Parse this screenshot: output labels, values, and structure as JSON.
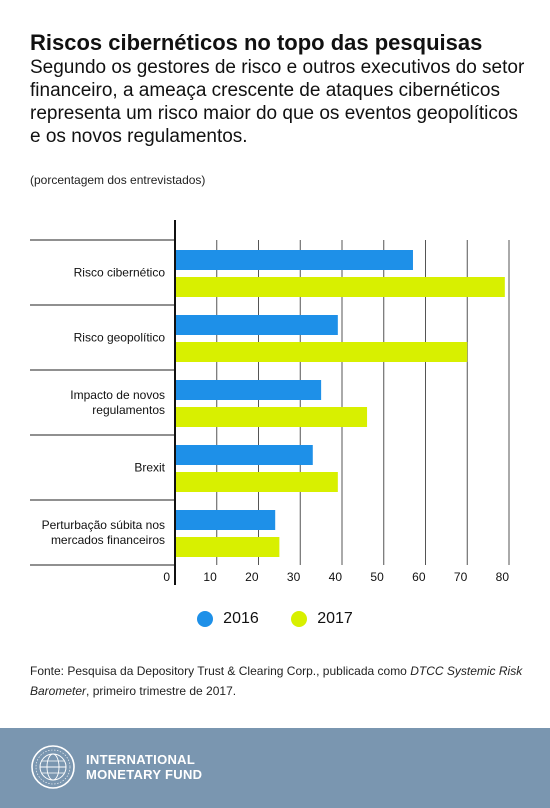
{
  "header": {
    "title": "Riscos cibernéticos no topo das pesquisas",
    "subtitle": "Segundo os gestores de risco e outros executivos do setor financeiro, a ameaça crescente de ataques cibernéticos representa um risco maior do que os eventos geopolíticos e os novos regulamentos.",
    "unit_note": "(porcentagem dos entrevistados)"
  },
  "chart_data": {
    "type": "bar",
    "orientation": "horizontal",
    "categories": [
      "Risco cibernético",
      "Risco geopolítico",
      "Impacto de novos regulamentos",
      "Brexit",
      "Perturbação súbita nos mercados financeiros"
    ],
    "category_lines": [
      [
        "Risco cibernético"
      ],
      [
        "Risco geopolítico"
      ],
      [
        "Impacto de novos",
        "regulamentos"
      ],
      [
        "Brexit"
      ],
      [
        "Perturbação súbita nos",
        "mercados financeiros"
      ]
    ],
    "series": [
      {
        "name": "2016",
        "color": "#1e90e8",
        "values": [
          57,
          39,
          35,
          33,
          24
        ]
      },
      {
        "name": "2017",
        "color": "#d8f000",
        "values": [
          79,
          70,
          46,
          39,
          25
        ]
      }
    ],
    "xlim": [
      0,
      80
    ],
    "xticks": [
      0,
      10,
      20,
      30,
      40,
      50,
      60,
      70,
      80
    ],
    "grid": true,
    "legend_position": "bottom"
  },
  "source": {
    "prefix": "Fonte: Pesquisa da Depository Trust & Clearing Corp., publicada como ",
    "italic": "DTCC Systemic Risk Barometer",
    "suffix": ", primeiro trimestre de 2017."
  },
  "footer": {
    "org_line1": "INTERNATIONAL",
    "org_line2": "MONETARY FUND",
    "logo": "imf-seal-icon",
    "background": "#7a96b0"
  }
}
